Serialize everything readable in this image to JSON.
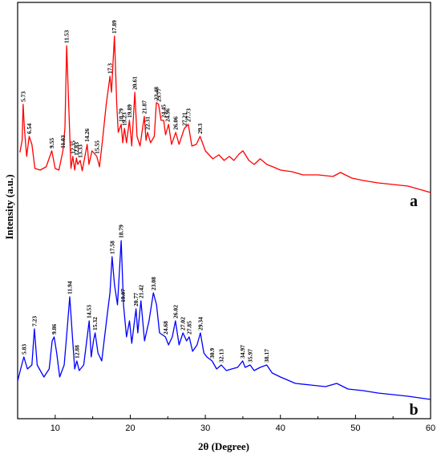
{
  "chart_data": {
    "type": "line",
    "title": "",
    "xlabel": "2θ (Degree)",
    "ylabel": "Intensity (a.u.)",
    "xlim": [
      5,
      60
    ],
    "xticks": [
      "10",
      "20",
      "30",
      "40",
      "50",
      "60"
    ],
    "yticks_shown": false,
    "grid": false,
    "legend": "none",
    "series": [
      {
        "name": "a",
        "color": "#ff0000",
        "points": [
          [
            5.3,
            190
          ],
          [
            5.6,
            175
          ],
          [
            5.73,
            130
          ],
          [
            5.9,
            160
          ],
          [
            6.2,
            195
          ],
          [
            6.54,
            170
          ],
          [
            6.9,
            180
          ],
          [
            7.3,
            210
          ],
          [
            8.0,
            212
          ],
          [
            8.8,
            208
          ],
          [
            9.55,
            188
          ],
          [
            10.0,
            210
          ],
          [
            10.5,
            212
          ],
          [
            11.03,
            188
          ],
          [
            11.3,
            160
          ],
          [
            11.53,
            57
          ],
          [
            11.8,
            130
          ],
          [
            12.1,
            210
          ],
          [
            12.35,
            195
          ],
          [
            12.6,
            212
          ],
          [
            12.83,
            197
          ],
          [
            13.0,
            205
          ],
          [
            13.33,
            200
          ],
          [
            13.6,
            213
          ],
          [
            14.26,
            180
          ],
          [
            14.5,
            205
          ],
          [
            14.9,
            188
          ],
          [
            15.55,
            195
          ],
          [
            15.9,
            208
          ],
          [
            16.3,
            175
          ],
          [
            16.8,
            130
          ],
          [
            17.3,
            95
          ],
          [
            17.5,
            115
          ],
          [
            17.89,
            45
          ],
          [
            18.2,
            130
          ],
          [
            18.4,
            165
          ],
          [
            18.79,
            155
          ],
          [
            19.0,
            178
          ],
          [
            19.23,
            160
          ],
          [
            19.5,
            178
          ],
          [
            19.89,
            150
          ],
          [
            20.2,
            182
          ],
          [
            20.61,
            115
          ],
          [
            20.9,
            170
          ],
          [
            21.3,
            182
          ],
          [
            21.87,
            145
          ],
          [
            22.1,
            175
          ],
          [
            22.31,
            165
          ],
          [
            22.7,
            178
          ],
          [
            23.2,
            170
          ],
          [
            23.48,
            128
          ],
          [
            23.77,
            130
          ],
          [
            24.1,
            150
          ],
          [
            24.45,
            150
          ],
          [
            24.7,
            168
          ],
          [
            25.1,
            155
          ],
          [
            25.5,
            180
          ],
          [
            26.06,
            165
          ],
          [
            26.5,
            180
          ],
          [
            27.21,
            160
          ],
          [
            27.73,
            155
          ],
          [
            28.2,
            182
          ],
          [
            28.8,
            180
          ],
          [
            29.3,
            170
          ],
          [
            30.0,
            188
          ],
          [
            31.0,
            198
          ],
          [
            31.8,
            193
          ],
          [
            32.5,
            200
          ],
          [
            33.2,
            195
          ],
          [
            33.8,
            200
          ],
          [
            34.5,
            192
          ],
          [
            35.0,
            188
          ],
          [
            35.8,
            200
          ],
          [
            36.5,
            205
          ],
          [
            37.3,
            198
          ],
          [
            38.2,
            205
          ],
          [
            39.0,
            208
          ],
          [
            40.0,
            212
          ],
          [
            41.5,
            214
          ],
          [
            43.0,
            218
          ],
          [
            45.0,
            218
          ],
          [
            47.0,
            220
          ],
          [
            48.0,
            215
          ],
          [
            49.5,
            222
          ],
          [
            51.0,
            225
          ],
          [
            53.0,
            228
          ],
          [
            55.0,
            230
          ],
          [
            57.0,
            232
          ],
          [
            58.5,
            236
          ],
          [
            60.0,
            240
          ]
        ]
      },
      {
        "name": "b",
        "color": "#0000ff",
        "points": [
          [
            5.0,
            475
          ],
          [
            5.4,
            460
          ],
          [
            5.83,
            445
          ],
          [
            6.3,
            460
          ],
          [
            6.9,
            455
          ],
          [
            7.23,
            410
          ],
          [
            7.6,
            455
          ],
          [
            8.5,
            470
          ],
          [
            9.2,
            460
          ],
          [
            9.6,
            425
          ],
          [
            9.86,
            420
          ],
          [
            10.2,
            440
          ],
          [
            10.6,
            470
          ],
          [
            11.2,
            455
          ],
          [
            11.6,
            410
          ],
          [
            11.94,
            370
          ],
          [
            12.3,
            420
          ],
          [
            12.6,
            460
          ],
          [
            12.88,
            450
          ],
          [
            13.2,
            462
          ],
          [
            13.8,
            455
          ],
          [
            14.2,
            425
          ],
          [
            14.53,
            400
          ],
          [
            14.8,
            445
          ],
          [
            15.1,
            425
          ],
          [
            15.32,
            415
          ],
          [
            15.7,
            440
          ],
          [
            16.2,
            450
          ],
          [
            16.9,
            395
          ],
          [
            17.3,
            365
          ],
          [
            17.58,
            320
          ],
          [
            17.9,
            355
          ],
          [
            18.3,
            380
          ],
          [
            18.79,
            300
          ],
          [
            19.1,
            380
          ],
          [
            19.5,
            420
          ],
          [
            19.9,
            400
          ],
          [
            20.2,
            428
          ],
          [
            20.77,
            385
          ],
          [
            21.0,
            415
          ],
          [
            21.42,
            375
          ],
          [
            21.9,
            425
          ],
          [
            22.5,
            400
          ],
          [
            23.08,
            365
          ],
          [
            23.5,
            380
          ],
          [
            23.9,
            415
          ],
          [
            24.68,
            420
          ],
          [
            25.1,
            430
          ],
          [
            25.6,
            420
          ],
          [
            26.02,
            400
          ],
          [
            26.5,
            430
          ],
          [
            27.02,
            415
          ],
          [
            27.5,
            425
          ],
          [
            27.85,
            420
          ],
          [
            28.3,
            438
          ],
          [
            28.9,
            430
          ],
          [
            29.34,
            415
          ],
          [
            29.8,
            440
          ],
          [
            30.2,
            445
          ],
          [
            30.9,
            450
          ],
          [
            31.5,
            460
          ],
          [
            32.13,
            455
          ],
          [
            32.8,
            462
          ],
          [
            33.5,
            460
          ],
          [
            34.3,
            458
          ],
          [
            34.97,
            450
          ],
          [
            35.3,
            458
          ],
          [
            35.97,
            455
          ],
          [
            36.5,
            462
          ],
          [
            37.3,
            458
          ],
          [
            38.17,
            455
          ],
          [
            38.9,
            465
          ],
          [
            40.0,
            470
          ],
          [
            42.0,
            478
          ],
          [
            44.0,
            480
          ],
          [
            46.0,
            482
          ],
          [
            47.5,
            478
          ],
          [
            49.0,
            485
          ],
          [
            51.0,
            487
          ],
          [
            53.0,
            490
          ],
          [
            55.0,
            492
          ],
          [
            57.0,
            494
          ],
          [
            58.5,
            496
          ],
          [
            60.0,
            498
          ]
        ]
      }
    ],
    "annotations": {
      "a": [
        "5.73",
        "6.54",
        "9.55",
        "11.03",
        "11.53",
        "12.35",
        "12.83",
        "13.33",
        "14.26",
        "15.55",
        "17.3",
        "17.89",
        "18.79",
        "19.23",
        "19.89",
        "20.61",
        "21.87",
        "22.31",
        "23.48",
        "23.77",
        "24.45",
        "24.96",
        "26.06",
        "27.21",
        "27.73",
        "29.3"
      ],
      "b": [
        "5.83",
        "7.23",
        "9.86",
        "11.94",
        "12.88",
        "14.53",
        "15.32",
        "17.58",
        "18.79",
        "19.07",
        "20.77",
        "21.42",
        "23.08",
        "24.68",
        "26.02",
        "27.02",
        "27.85",
        "29.34",
        "30.9",
        "32.13",
        "34.97",
        "35.97",
        "38.17"
      ]
    }
  }
}
